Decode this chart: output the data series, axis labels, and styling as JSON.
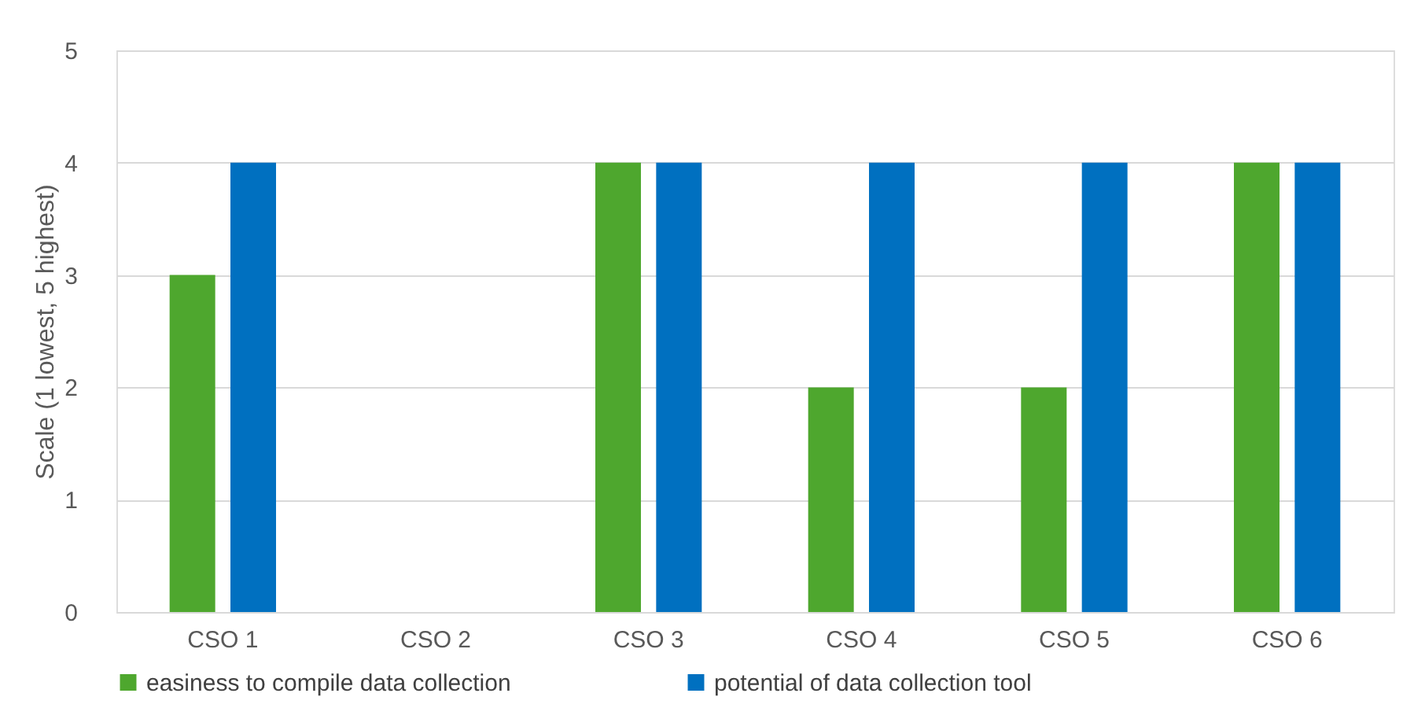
{
  "chart_data": {
    "type": "bar",
    "ylabel": "Scale (1 lowest, 5 highest)",
    "categories": [
      "CSO 1",
      "CSO 2",
      "CSO 3",
      "CSO 4",
      "CSO 5",
      "CSO 6"
    ],
    "series": [
      {
        "name": "easiness to compile data collection",
        "color": "#4ea72e",
        "values": [
          3,
          null,
          4,
          2,
          2,
          4
        ]
      },
      {
        "name": "potential of data collection tool",
        "color": "#0070c0",
        "values": [
          4,
          null,
          4,
          4,
          4,
          4
        ]
      }
    ],
    "ylim": [
      0,
      5
    ],
    "yticks": [
      0,
      1,
      2,
      3,
      4,
      5
    ],
    "grid": "y",
    "legend": "bottom"
  }
}
